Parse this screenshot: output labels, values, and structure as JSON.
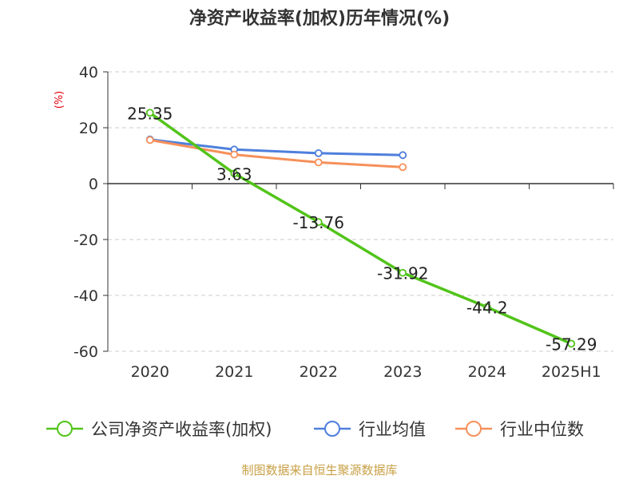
{
  "chart_data": {
    "type": "line",
    "title": "净资产收益率(加权)历年情况(%)",
    "ylabel": "(%)",
    "xlabel": "",
    "categories": [
      "2020",
      "2021",
      "2022",
      "2023",
      "2024",
      "2025H1"
    ],
    "y_ticks": [
      40,
      20,
      0,
      -20,
      -40,
      -60
    ],
    "ylim": [
      -60,
      40
    ],
    "grid": true,
    "legend_position": "bottom",
    "series": [
      {
        "name": "公司净资产收益率(加权)",
        "color": "#52c41a",
        "values": [
          25.35,
          3.63,
          -13.76,
          -31.92,
          -44.2,
          -57.29
        ],
        "data_labels": [
          "25.35",
          "3.63",
          "-13.76",
          "-31.92",
          "-44.2",
          "-57.29"
        ]
      },
      {
        "name": "行业均值",
        "color": "#4e7fdc",
        "values": [
          15.8,
          12.2,
          10.9,
          10.2,
          null,
          null
        ]
      },
      {
        "name": "行业中位数",
        "color": "#f6905b",
        "values": [
          15.6,
          10.4,
          7.6,
          5.9,
          null,
          null
        ]
      }
    ],
    "source": "制图数据来自恒生聚源数据库"
  }
}
